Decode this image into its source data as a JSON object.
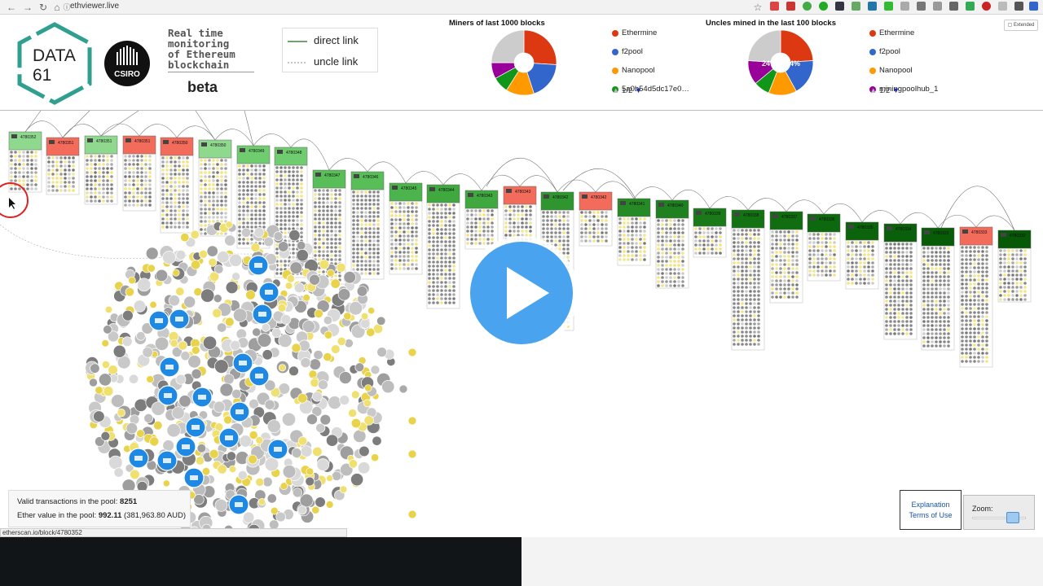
{
  "browser": {
    "url": "ethviewer.live"
  },
  "header": {
    "logo_data_text_1": "DATA",
    "logo_data_text_2": "61",
    "logo_csiro_text": "CSIRO",
    "tagline": [
      "Real time",
      "monitoring",
      "of Ethereum",
      "blockchain"
    ],
    "beta": "beta",
    "legend": {
      "direct": "direct link",
      "uncle": "uncle link"
    },
    "extended_label": "Extended"
  },
  "miners_pie": {
    "title": "Miners of last 1000 blocks",
    "legend": [
      "Ethermine",
      "f2pool",
      "Nanopool",
      "5a0b54d5dc17e0…"
    ],
    "pager": "1/2"
  },
  "uncles_pie": {
    "title": "Uncles mined in the last 100 blocks",
    "legend": [
      "Ethermine",
      "f2pool",
      "Nanopool",
      "miningpoolhub_1"
    ],
    "pager": "1/2",
    "label_a": "24%",
    "label_b": "24%"
  },
  "chart_data": [
    {
      "type": "pie",
      "title": "Miners of last 1000 blocks",
      "labels": [
        "Ethermine",
        "f2pool",
        "Nanopool",
        "5a0b54d5dc17e0…",
        "other-purple",
        "other-gray"
      ],
      "values": [
        26,
        19,
        14,
        8,
        8,
        25
      ],
      "colors": [
        "#dc3912",
        "#3366cc",
        "#ff9900",
        "#109618",
        "#990099",
        "#cccccc"
      ]
    },
    {
      "type": "pie",
      "title": "Uncles mined in the last 100 blocks",
      "labels": [
        "Ethermine",
        "f2pool",
        "Nanopool",
        "other-green",
        "miningpoolhub_1",
        "other-gray"
      ],
      "values": [
        24,
        18,
        14,
        8,
        12,
        24
      ],
      "colors": [
        "#dc3912",
        "#3366cc",
        "#ff9900",
        "#109618",
        "#990099",
        "#cccccc"
      ]
    }
  ],
  "blocks": [
    {
      "number": "4780352",
      "color": "#8fd98f"
    },
    {
      "number": "4780351",
      "color": "#f26b5b"
    },
    {
      "number": "4780351",
      "color": "#8fd98f"
    },
    {
      "number": "4780351",
      "color": "#f26b5b"
    },
    {
      "number": "4780350",
      "color": "#f26b5b"
    },
    {
      "number": "4780350",
      "color": "#8fd98f"
    },
    {
      "number": "4780349",
      "color": "#6fcc6f"
    },
    {
      "number": "4780348",
      "color": "#6fcc6f"
    },
    {
      "number": "4780347",
      "color": "#58bf58"
    },
    {
      "number": "4780346",
      "color": "#58bf58"
    },
    {
      "number": "4780345",
      "color": "#4cb44c"
    },
    {
      "number": "4780344",
      "color": "#3fa83f"
    },
    {
      "number": "4780343",
      "color": "#3fa83f"
    },
    {
      "number": "4780343",
      "color": "#f26b5b"
    },
    {
      "number": "4780342",
      "color": "#2f962f"
    },
    {
      "number": "4780342",
      "color": "#f26b5b"
    },
    {
      "number": "4780341",
      "color": "#268a26"
    },
    {
      "number": "4780340",
      "color": "#1f801f"
    },
    {
      "number": "4780339",
      "color": "#1a7a1a"
    },
    {
      "number": "4780338",
      "color": "#137313"
    },
    {
      "number": "4780337",
      "color": "#106e10"
    },
    {
      "number": "4780336",
      "color": "#0d690d"
    },
    {
      "number": "4780335",
      "color": "#0b640b"
    },
    {
      "number": "4780334",
      "color": "#0a600a"
    },
    {
      "number": "4780333",
      "color": "#085c08"
    },
    {
      "number": "4780333",
      "color": "#f26b5b"
    },
    {
      "number": "4780332",
      "color": "#075807"
    }
  ],
  "pool": {
    "valid_label": "Valid transactions in the pool: ",
    "valid_value": "8251",
    "ether_label": "Ether value in the pool: ",
    "ether_value": "992.11",
    "ether_aud": "(381,963.80 AUD)"
  },
  "footer": {
    "explanation": "Explanation",
    "terms": "Terms of Use",
    "zoom_label": "Zoom:",
    "zoom_level": 0.8
  },
  "status_bar": {
    "url": "etherscan.io/block/4780352"
  }
}
